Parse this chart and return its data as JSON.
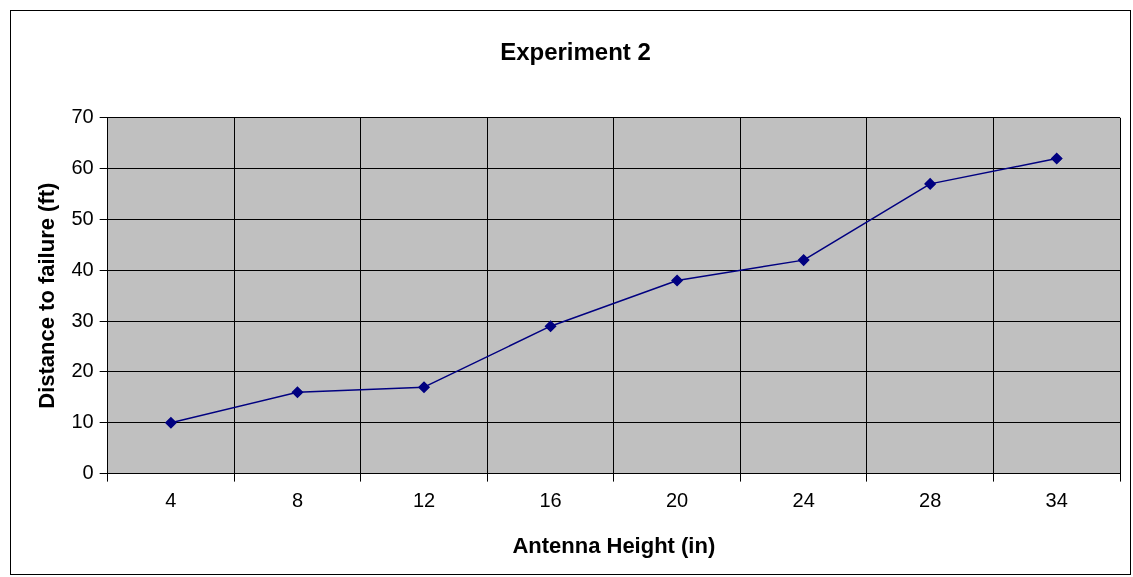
{
  "chart_data": {
    "type": "line",
    "title": "Experiment 2",
    "xlabel": "Antenna Height (in)",
    "ylabel": "Distance to failure (ft)",
    "categories": [
      "4",
      "8",
      "12",
      "16",
      "20",
      "24",
      "28",
      "34"
    ],
    "series": [
      {
        "color": "#000080",
        "values": [
          10,
          16,
          17,
          29,
          38,
          42,
          57,
          62
        ]
      }
    ],
    "ylim": [
      0,
      70
    ],
    "yticks": [
      0,
      10,
      20,
      30,
      40,
      50,
      60,
      70
    ],
    "grid": true,
    "legend": false,
    "marker": "diamond",
    "line_style": "solid"
  }
}
